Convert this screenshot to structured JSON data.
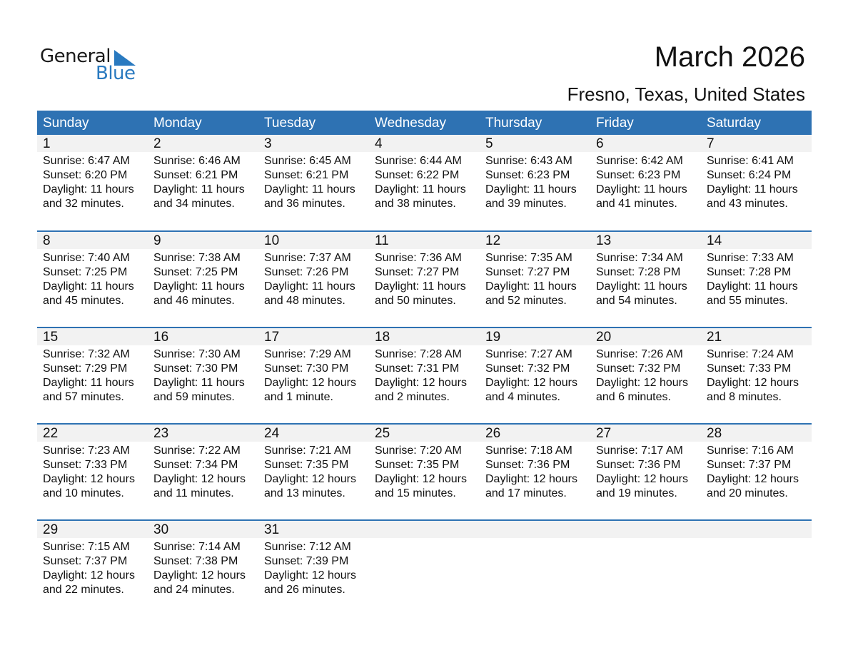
{
  "logo": {
    "text1": "General",
    "text2": "Blue"
  },
  "title": "March 2026",
  "location": "Fresno, Texas, United States",
  "weekdays": [
    "Sunday",
    "Monday",
    "Tuesday",
    "Wednesday",
    "Thursday",
    "Friday",
    "Saturday"
  ],
  "days": [
    {
      "day": "1",
      "sunrise": "Sunrise: 6:47 AM",
      "sunset": "Sunset: 6:20 PM",
      "daylight": "Daylight: 11 hours",
      "minutes": "and 32 minutes."
    },
    {
      "day": "2",
      "sunrise": "Sunrise: 6:46 AM",
      "sunset": "Sunset: 6:21 PM",
      "daylight": "Daylight: 11 hours",
      "minutes": "and 34 minutes."
    },
    {
      "day": "3",
      "sunrise": "Sunrise: 6:45 AM",
      "sunset": "Sunset: 6:21 PM",
      "daylight": "Daylight: 11 hours",
      "minutes": "and 36 minutes."
    },
    {
      "day": "4",
      "sunrise": "Sunrise: 6:44 AM",
      "sunset": "Sunset: 6:22 PM",
      "daylight": "Daylight: 11 hours",
      "minutes": "and 38 minutes."
    },
    {
      "day": "5",
      "sunrise": "Sunrise: 6:43 AM",
      "sunset": "Sunset: 6:23 PM",
      "daylight": "Daylight: 11 hours",
      "minutes": "and 39 minutes."
    },
    {
      "day": "6",
      "sunrise": "Sunrise: 6:42 AM",
      "sunset": "Sunset: 6:23 PM",
      "daylight": "Daylight: 11 hours",
      "minutes": "and 41 minutes."
    },
    {
      "day": "7",
      "sunrise": "Sunrise: 6:41 AM",
      "sunset": "Sunset: 6:24 PM",
      "daylight": "Daylight: 11 hours",
      "minutes": "and 43 minutes."
    },
    {
      "day": "8",
      "sunrise": "Sunrise: 7:40 AM",
      "sunset": "Sunset: 7:25 PM",
      "daylight": "Daylight: 11 hours",
      "minutes": "and 45 minutes."
    },
    {
      "day": "9",
      "sunrise": "Sunrise: 7:38 AM",
      "sunset": "Sunset: 7:25 PM",
      "daylight": "Daylight: 11 hours",
      "minutes": "and 46 minutes."
    },
    {
      "day": "10",
      "sunrise": "Sunrise: 7:37 AM",
      "sunset": "Sunset: 7:26 PM",
      "daylight": "Daylight: 11 hours",
      "minutes": "and 48 minutes."
    },
    {
      "day": "11",
      "sunrise": "Sunrise: 7:36 AM",
      "sunset": "Sunset: 7:27 PM",
      "daylight": "Daylight: 11 hours",
      "minutes": "and 50 minutes."
    },
    {
      "day": "12",
      "sunrise": "Sunrise: 7:35 AM",
      "sunset": "Sunset: 7:27 PM",
      "daylight": "Daylight: 11 hours",
      "minutes": "and 52 minutes."
    },
    {
      "day": "13",
      "sunrise": "Sunrise: 7:34 AM",
      "sunset": "Sunset: 7:28 PM",
      "daylight": "Daylight: 11 hours",
      "minutes": "and 54 minutes."
    },
    {
      "day": "14",
      "sunrise": "Sunrise: 7:33 AM",
      "sunset": "Sunset: 7:28 PM",
      "daylight": "Daylight: 11 hours",
      "minutes": "and 55 minutes."
    },
    {
      "day": "15",
      "sunrise": "Sunrise: 7:32 AM",
      "sunset": "Sunset: 7:29 PM",
      "daylight": "Daylight: 11 hours",
      "minutes": "and 57 minutes."
    },
    {
      "day": "16",
      "sunrise": "Sunrise: 7:30 AM",
      "sunset": "Sunset: 7:30 PM",
      "daylight": "Daylight: 11 hours",
      "minutes": "and 59 minutes."
    },
    {
      "day": "17",
      "sunrise": "Sunrise: 7:29 AM",
      "sunset": "Sunset: 7:30 PM",
      "daylight": "Daylight: 12 hours",
      "minutes": "and 1 minute."
    },
    {
      "day": "18",
      "sunrise": "Sunrise: 7:28 AM",
      "sunset": "Sunset: 7:31 PM",
      "daylight": "Daylight: 12 hours",
      "minutes": "and 2 minutes."
    },
    {
      "day": "19",
      "sunrise": "Sunrise: 7:27 AM",
      "sunset": "Sunset: 7:32 PM",
      "daylight": "Daylight: 12 hours",
      "minutes": "and 4 minutes."
    },
    {
      "day": "20",
      "sunrise": "Sunrise: 7:26 AM",
      "sunset": "Sunset: 7:32 PM",
      "daylight": "Daylight: 12 hours",
      "minutes": "and 6 minutes."
    },
    {
      "day": "21",
      "sunrise": "Sunrise: 7:24 AM",
      "sunset": "Sunset: 7:33 PM",
      "daylight": "Daylight: 12 hours",
      "minutes": "and 8 minutes."
    },
    {
      "day": "22",
      "sunrise": "Sunrise: 7:23 AM",
      "sunset": "Sunset: 7:33 PM",
      "daylight": "Daylight: 12 hours",
      "minutes": "and 10 minutes."
    },
    {
      "day": "23",
      "sunrise": "Sunrise: 7:22 AM",
      "sunset": "Sunset: 7:34 PM",
      "daylight": "Daylight: 12 hours",
      "minutes": "and 11 minutes."
    },
    {
      "day": "24",
      "sunrise": "Sunrise: 7:21 AM",
      "sunset": "Sunset: 7:35 PM",
      "daylight": "Daylight: 12 hours",
      "minutes": "and 13 minutes."
    },
    {
      "day": "25",
      "sunrise": "Sunrise: 7:20 AM",
      "sunset": "Sunset: 7:35 PM",
      "daylight": "Daylight: 12 hours",
      "minutes": "and 15 minutes."
    },
    {
      "day": "26",
      "sunrise": "Sunrise: 7:18 AM",
      "sunset": "Sunset: 7:36 PM",
      "daylight": "Daylight: 12 hours",
      "minutes": "and 17 minutes."
    },
    {
      "day": "27",
      "sunrise": "Sunrise: 7:17 AM",
      "sunset": "Sunset: 7:36 PM",
      "daylight": "Daylight: 12 hours",
      "minutes": "and 19 minutes."
    },
    {
      "day": "28",
      "sunrise": "Sunrise: 7:16 AM",
      "sunset": "Sunset: 7:37 PM",
      "daylight": "Daylight: 12 hours",
      "minutes": "and 20 minutes."
    },
    {
      "day": "29",
      "sunrise": "Sunrise: 7:15 AM",
      "sunset": "Sunset: 7:37 PM",
      "daylight": "Daylight: 12 hours",
      "minutes": "and 22 minutes."
    },
    {
      "day": "30",
      "sunrise": "Sunrise: 7:14 AM",
      "sunset": "Sunset: 7:38 PM",
      "daylight": "Daylight: 12 hours",
      "minutes": "and 24 minutes."
    },
    {
      "day": "31",
      "sunrise": "Sunrise: 7:12 AM",
      "sunset": "Sunset: 7:39 PM",
      "daylight": "Daylight: 12 hours",
      "minutes": "and 26 minutes."
    }
  ],
  "colors": {
    "header": "#2e72b3",
    "day_row": "#f2f2f2",
    "logo_blue": "#2a7ac0"
  }
}
